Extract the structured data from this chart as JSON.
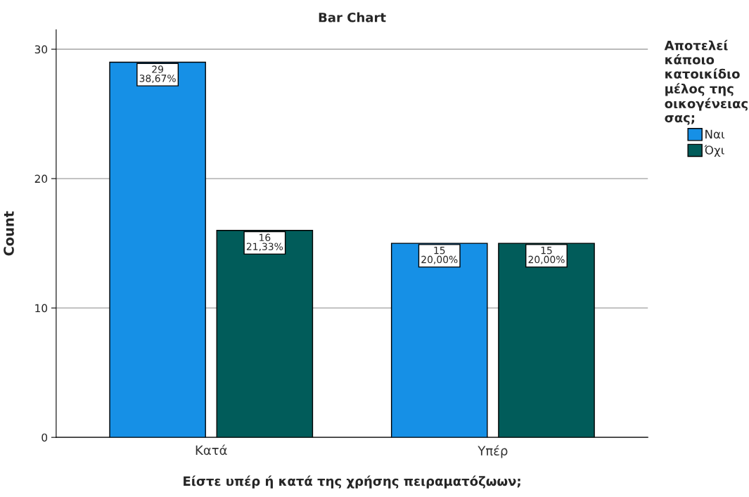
{
  "chart_data": {
    "type": "bar",
    "title": "Bar Chart",
    "xlabel": "Είστε υπέρ ή κατά της χρήσης πειραματόζωων;",
    "ylabel": "Count",
    "legend_title": "Αποτελεί κάποιο κατοικίδιο μέλος της οικογένειας σας;",
    "categories": [
      "Κατά",
      "Υπέρ"
    ],
    "series": [
      {
        "name": "Ναι",
        "color": "#1690e6",
        "values": [
          29,
          15
        ],
        "value_labels": [
          "29\n38,67%",
          "15\n20,00%"
        ]
      },
      {
        "name": "Όχι",
        "color": "#015c5a",
        "values": [
          16,
          15
        ],
        "value_labels": [
          "16\n21,33%",
          "15\n20,00%"
        ]
      }
    ],
    "ylim": [
      0,
      31.5
    ],
    "yticks": [
      0,
      10,
      20,
      30
    ],
    "grid": "y",
    "legend": "right"
  }
}
